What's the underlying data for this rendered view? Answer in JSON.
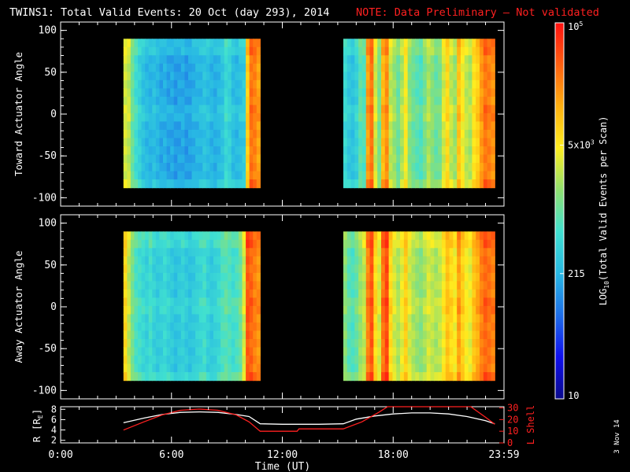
{
  "header": {
    "title": "TWINS1: Total Valid Events: 20 Oct (day 293), 2014",
    "note": "NOTE: Data Preliminary — Not validated",
    "note_color": "#ff2020"
  },
  "footer": {
    "date_stamp": "3 Nov 14"
  },
  "chart_data": [
    {
      "id": "toward",
      "type": "heatmap",
      "title": "",
      "ylabel": "Toward Actuator Angle",
      "xlabel": "",
      "ylim": [
        -110,
        110
      ],
      "y_ticks": [
        -100,
        -50,
        0,
        50,
        100
      ],
      "y_tick_labels": [
        "-100",
        "-50",
        "0",
        "50",
        "100"
      ],
      "angle_range": [
        -88,
        90
      ],
      "time_blocks": [
        {
          "start_hr": 3.4,
          "end_hr": 10.8,
          "levels": [
            0.62,
            0.6,
            0.5,
            0.44,
            0.4,
            0.36,
            0.34,
            0.33,
            0.35,
            0.33,
            0.31,
            0.32,
            0.3,
            0.31,
            0.29,
            0.3,
            0.31,
            0.29,
            0.3,
            0.32,
            0.33,
            0.34,
            0.36,
            0.35,
            0.33,
            0.32,
            0.34,
            0.36,
            0.42,
            0.4,
            0.35,
            0.34,
            0.36,
            0.38,
            0.72,
            0.86,
            0.84,
            0.8
          ]
        },
        {
          "start_hr": 15.3,
          "end_hr": 23.5,
          "levels": [
            0.42,
            0.38,
            0.36,
            0.4,
            0.48,
            0.46,
            0.8,
            0.86,
            0.62,
            0.52,
            0.76,
            0.82,
            0.6,
            0.56,
            0.5,
            0.58,
            0.66,
            0.54,
            0.5,
            0.48,
            0.46,
            0.52,
            0.58,
            0.54,
            0.5,
            0.52,
            0.62,
            0.7,
            0.6,
            0.56,
            0.74,
            0.66,
            0.6,
            0.58,
            0.68,
            0.72,
            0.8,
            0.86,
            0.84,
            0.82
          ]
        }
      ]
    },
    {
      "id": "away",
      "type": "heatmap",
      "title": "",
      "ylabel": "Away Actuator Angle",
      "xlabel": "",
      "ylim": [
        -110,
        110
      ],
      "y_ticks": [
        -100,
        -50,
        0,
        50,
        100
      ],
      "y_tick_labels": [
        "-100",
        "-50",
        "0",
        "50",
        "100"
      ],
      "angle_range": [
        -88,
        90
      ],
      "time_blocks": [
        {
          "start_hr": 3.4,
          "end_hr": 10.8,
          "levels": [
            0.7,
            0.6,
            0.52,
            0.46,
            0.44,
            0.42,
            0.4,
            0.44,
            0.4,
            0.38,
            0.4,
            0.42,
            0.4,
            0.38,
            0.36,
            0.38,
            0.4,
            0.38,
            0.36,
            0.38,
            0.4,
            0.42,
            0.44,
            0.4,
            0.38,
            0.4,
            0.42,
            0.46,
            0.48,
            0.46,
            0.44,
            0.46,
            0.5,
            0.62,
            0.9,
            0.88,
            0.84,
            0.82
          ]
        },
        {
          "start_hr": 15.3,
          "end_hr": 23.5,
          "levels": [
            0.54,
            0.48,
            0.46,
            0.5,
            0.56,
            0.6,
            0.84,
            0.9,
            0.7,
            0.62,
            0.86,
            0.92,
            0.7,
            0.62,
            0.58,
            0.64,
            0.72,
            0.62,
            0.58,
            0.56,
            0.54,
            0.58,
            0.62,
            0.6,
            0.58,
            0.6,
            0.66,
            0.74,
            0.7,
            0.66,
            0.8,
            0.72,
            0.66,
            0.64,
            0.74,
            0.78,
            0.84,
            0.88,
            0.86,
            0.84
          ]
        }
      ]
    },
    {
      "id": "orbit",
      "type": "line",
      "title": "",
      "xlabel": "Time (UT)",
      "ylabel_left": "R [R",
      "ylabel_left_sub": "E",
      "ylabel_left_end": "]",
      "ylabel_right": "L Shell",
      "ylim_left": [
        1.5,
        8.5
      ],
      "ylim_right": [
        0,
        31
      ],
      "y_ticks_left": [
        2,
        4,
        6,
        8
      ],
      "y_tick_labels_left": [
        "2",
        "4",
        "6",
        "8"
      ],
      "y_ticks_right": [
        0,
        10,
        20,
        30
      ],
      "y_tick_labels_right": [
        "0",
        "10",
        "20",
        "30"
      ],
      "xlim": [
        0,
        24
      ],
      "x_ticks": [
        0,
        6,
        12,
        18,
        24
      ],
      "x_tick_labels": [
        "0:00",
        "6:00",
        "12:00",
        "18:00",
        "23:59"
      ],
      "series": [
        {
          "color": "#ffffff",
          "axis": "left",
          "x": [
            3.4,
            4.5,
            5.5,
            6.5,
            7.5,
            8.5,
            9.5,
            10.2,
            10.8,
            12,
            14,
            15.3,
            16,
            17,
            18,
            19,
            20,
            21,
            22,
            23,
            23.5
          ],
          "y": [
            5.4,
            6.3,
            7.0,
            7.4,
            7.5,
            7.4,
            7.0,
            6.6,
            5.2,
            5.1,
            5.1,
            5.2,
            6.1,
            6.7,
            7.1,
            7.3,
            7.3,
            7.1,
            6.6,
            5.8,
            5.2
          ]
        },
        {
          "color": "#ff2020",
          "axis": "right",
          "x": [
            3.4,
            4.5,
            5.5,
            6.5,
            7.5,
            8.5,
            9.5,
            10.2,
            10.8,
            12.8,
            12.9,
            15.3,
            16.3,
            17.2,
            17.7,
            22.2,
            23.0,
            23.5
          ],
          "y": [
            11,
            18,
            24,
            28,
            29,
            28,
            24,
            18,
            10,
            10,
            12,
            12,
            18,
            26,
            31,
            31,
            22,
            16
          ]
        }
      ]
    }
  ],
  "colorbar": {
    "scale": "log",
    "label_main": "LOG",
    "label_sub": "10",
    "label_rest": "(Total Valid Events per Scan)",
    "range": [
      10,
      100000
    ],
    "ticks": [
      {
        "value": 10,
        "label": "10"
      },
      {
        "value": 215,
        "label": "215"
      },
      {
        "value": 5000,
        "label": "5x10",
        "exp": "3"
      },
      {
        "value": 100000,
        "label": "10",
        "exp": "5"
      }
    ],
    "colors": [
      "#0a0a8a",
      "#1010ee",
      "#1e6ee8",
      "#28b8e4",
      "#40e0d0",
      "#90e070",
      "#ffee20",
      "#ffb010",
      "#ff6010",
      "#ff1010"
    ]
  }
}
